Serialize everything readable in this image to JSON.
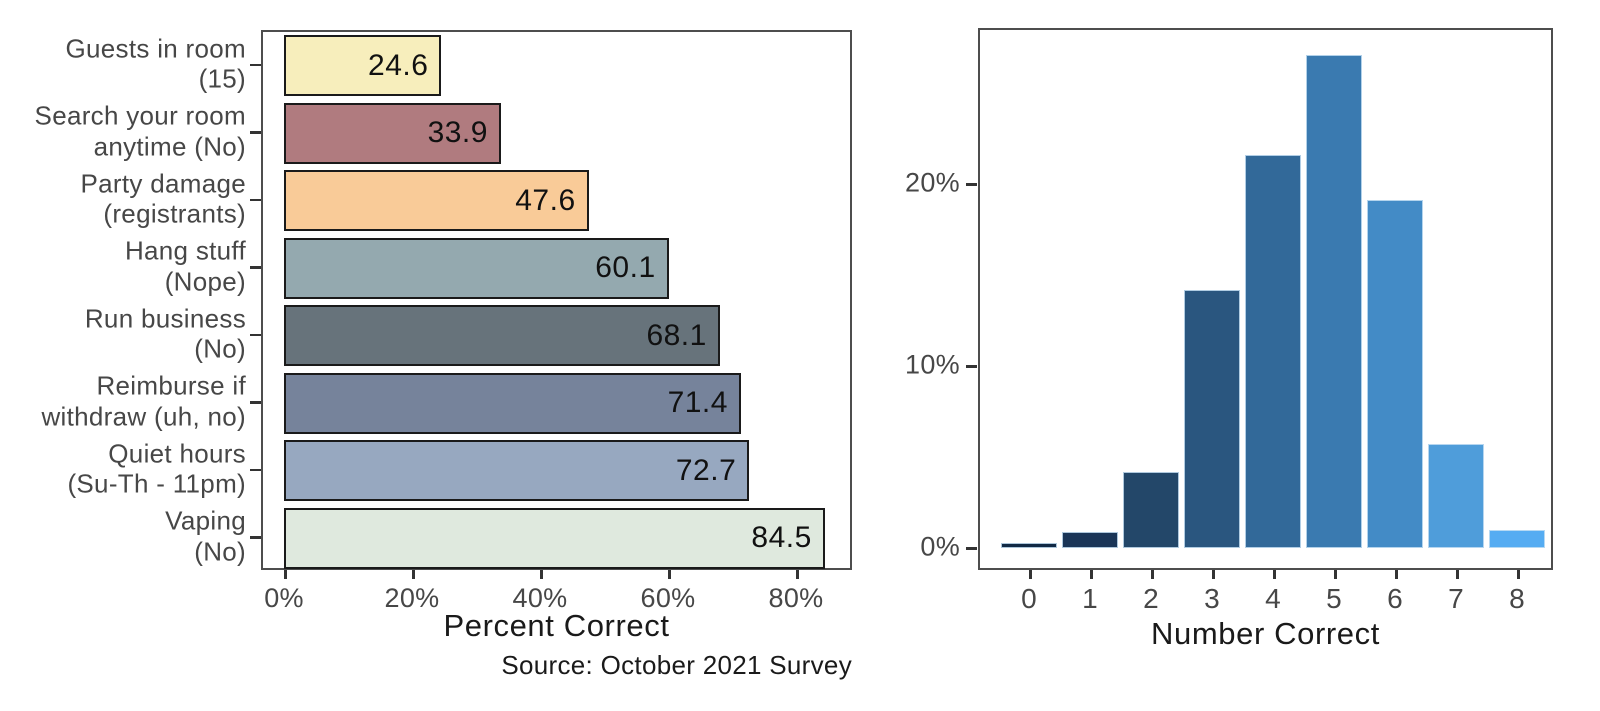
{
  "figure": {
    "background": "#ffffff"
  },
  "chart_data": [
    {
      "id": "quiz-question-accuracy",
      "type": "bar",
      "orientation": "horizontal",
      "categories": [
        "Guests in room\n(15)",
        "Search your room\nanytime (No)",
        "Party damage\n(registrants)",
        "Hang stuff\n(Nope)",
        "Run business\n(No)",
        "Reimburse if\nwithdraw (uh, no)",
        "Quiet hours\n(Su-Th - 11pm)",
        "Vaping\n(No)"
      ],
      "values": [
        24.6,
        33.9,
        47.6,
        60.1,
        68.1,
        71.4,
        72.7,
        84.5
      ],
      "value_labels": [
        "24.6",
        "33.9",
        "47.6",
        "60.1",
        "68.1",
        "71.4",
        "72.7",
        "84.5"
      ],
      "bar_colors": [
        "#f7eebc",
        "#b07b7f",
        "#f9cb98",
        "#94a9af",
        "#67737b",
        "#76839b",
        "#97a8c0",
        "#dfe9de"
      ],
      "bar_border_color": "#1a1a1a",
      "xlabel": "Percent Correct",
      "x_ticks": [
        {
          "pct": 0,
          "label": "0%"
        },
        {
          "pct": 20,
          "label": "20%"
        },
        {
          "pct": 40,
          "label": "40%"
        },
        {
          "pct": 60,
          "label": "60%"
        },
        {
          "pct": 80,
          "label": "80%"
        }
      ],
      "xlim": [
        0,
        88.8
      ],
      "grid": false,
      "legend": "none",
      "caption": "Source: October 2021 Survey",
      "panel_border_color": "#4d4d4d",
      "tick_text_color": "#474747",
      "axis_title_color": "#1a1a1a"
    },
    {
      "id": "number-correct-distribution",
      "type": "bar",
      "orientation": "vertical",
      "categories": [
        "0",
        "1",
        "2",
        "3",
        "4",
        "5",
        "6",
        "7",
        "8"
      ],
      "values": [
        0.3,
        0.9,
        4.2,
        14.2,
        21.6,
        27.1,
        19.1,
        5.7,
        1.0
      ],
      "bar_colors": [
        "#112944",
        "#1b3557",
        "#234769",
        "#2a567f",
        "#326999",
        "#3a7ab0",
        "#438bc6",
        "#4f9dda",
        "#55acf2"
      ],
      "xlabel": "Number Correct",
      "y_ticks": [
        {
          "pct": 0,
          "label": "0%"
        },
        {
          "pct": 10,
          "label": "10%"
        },
        {
          "pct": 20,
          "label": "20%"
        }
      ],
      "ylim": [
        -1.2,
        28.6
      ],
      "grid": false,
      "legend": "none",
      "panel_border_color": "#4d4d4d",
      "tick_text_color": "#474747",
      "axis_title_color": "#1a1a1a"
    }
  ]
}
